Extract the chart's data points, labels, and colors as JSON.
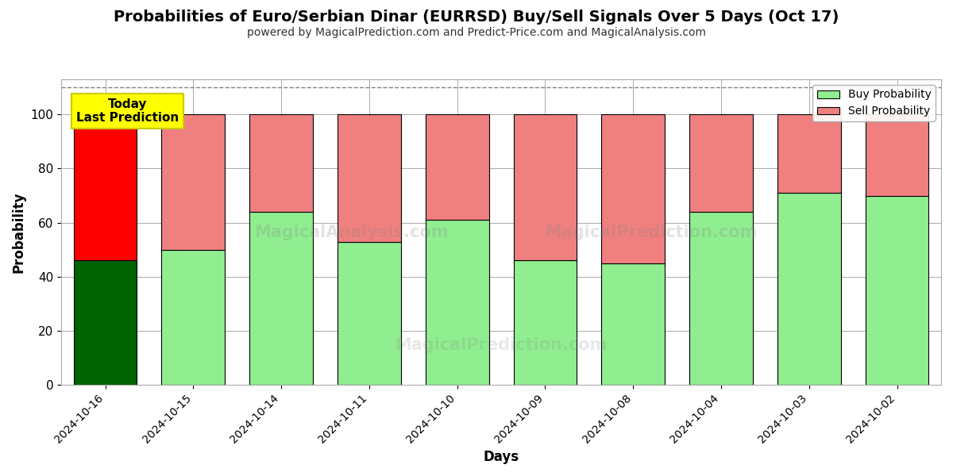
{
  "title": "Probabilities of Euro/Serbian Dinar (EURRSD) Buy/Sell Signals Over 5 Days (Oct 17)",
  "subtitle": "powered by MagicalPrediction.com and Predict-Price.com and MagicalAnalysis.com",
  "xlabel": "Days",
  "ylabel": "Probability",
  "categories": [
    "2024-10-16",
    "2024-10-15",
    "2024-10-14",
    "2024-10-11",
    "2024-10-10",
    "2024-10-09",
    "2024-10-08",
    "2024-10-04",
    "2024-10-03",
    "2024-10-02"
  ],
  "buy_values": [
    46,
    50,
    64,
    53,
    61,
    46,
    45,
    64,
    71,
    70
  ],
  "sell_values": [
    54,
    50,
    36,
    47,
    39,
    54,
    55,
    36,
    29,
    30
  ],
  "buy_colors": [
    "#006400",
    "#90EE90",
    "#90EE90",
    "#90EE90",
    "#90EE90",
    "#90EE90",
    "#90EE90",
    "#90EE90",
    "#90EE90",
    "#90EE90"
  ],
  "sell_colors": [
    "#FF0000",
    "#F08080",
    "#F08080",
    "#F08080",
    "#F08080",
    "#F08080",
    "#F08080",
    "#F08080",
    "#F08080",
    "#F08080"
  ],
  "today_label": "Today\nLast Prediction",
  "legend_buy_color": "#90EE90",
  "legend_sell_color": "#F08080",
  "ylim": [
    0,
    113
  ],
  "dashed_line_y": 110,
  "bar_edge_color": "#000000",
  "bar_linewidth": 0.8,
  "today_box_color": "#FFFF00",
  "background_color": "#FFFFFF",
  "grid_color": "#AAAAAA",
  "watermark1": "MagicalAnalysis.com",
  "watermark2": "MagicalPrediction.com",
  "watermark3": "MagicalPrediction.com"
}
